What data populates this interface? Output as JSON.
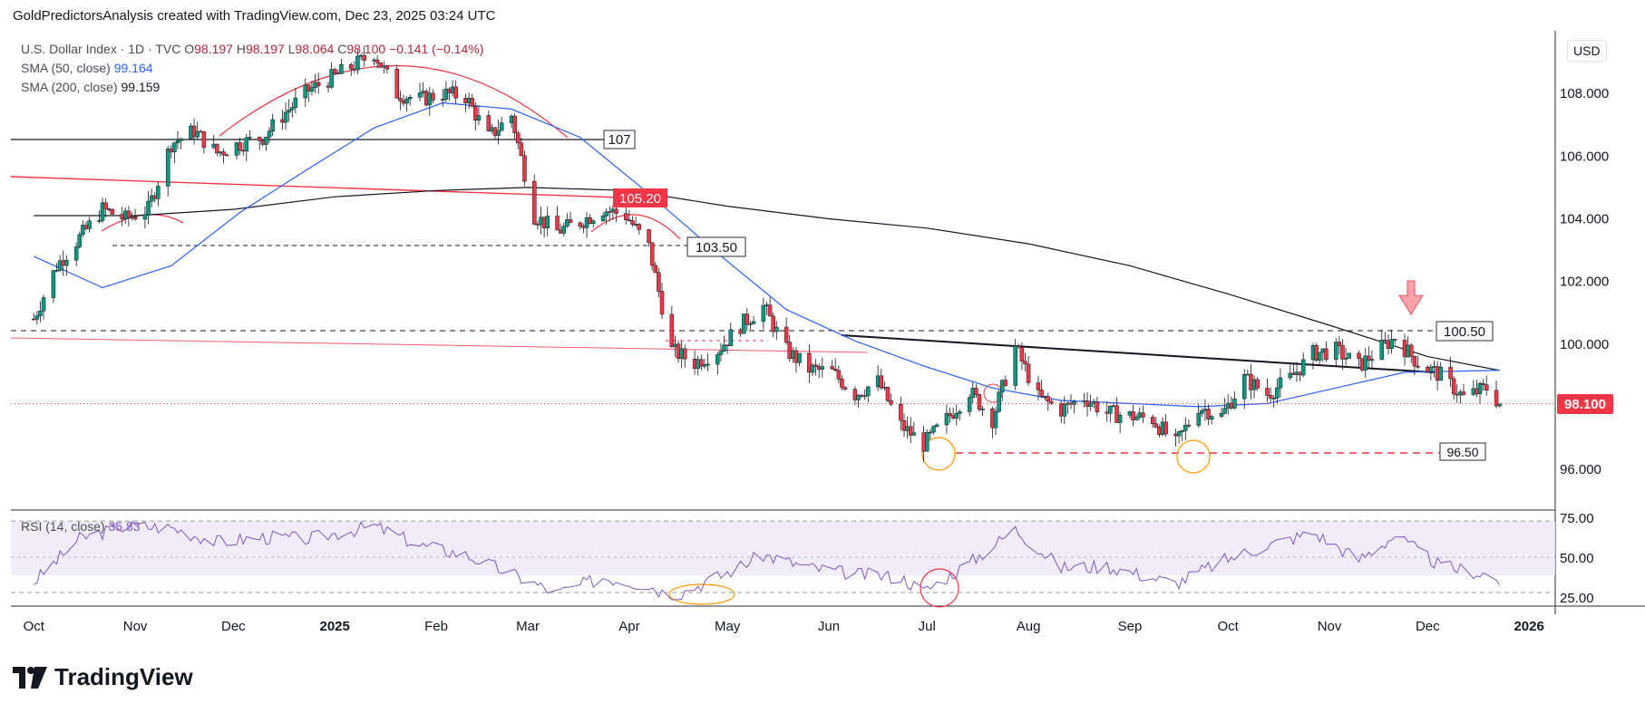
{
  "header": {
    "attribution": "GoldPredictorsAnalysis created with TradingView.com, Dec 23, 2025 03:24 UTC"
  },
  "legend": {
    "symbol": "U.S. Dollar Index · 1D · TVC",
    "ohlc": {
      "o_label": "O",
      "o": "98.197",
      "h_label": "H",
      "h": "98.197",
      "l_label": "L",
      "l": "98.064",
      "c_label": "C",
      "c": "98.100",
      "change": "−0.141 (−0.14%)"
    },
    "sma50": {
      "label": "SMA (50, close)",
      "value": "99.164"
    },
    "sma200": {
      "label": "SMA (200, close)",
      "value": "99.159"
    }
  },
  "rsi_legend": {
    "label": "RSI (14, close)",
    "value": "35.83"
  },
  "currency": "USD",
  "annotations": {
    "level_107": "107",
    "level_10520": "105.20",
    "level_10350": "103.50",
    "level_10050": "100.50",
    "level_9650": "96.50",
    "last_price": "98.100"
  },
  "brand": {
    "name": "TradingView"
  },
  "colors": {
    "up": "#089981",
    "down": "#f23645",
    "sma50": "#2962ff",
    "sma200": "#131722",
    "rsi": "#7e57c2",
    "rsi_band": "#ede7f6",
    "annotation_red": "#f23645",
    "annotation_orange": "#ff9800"
  },
  "chart_data": {
    "type": "candlestick",
    "title": "U.S. Dollar Index · 1D · TVC",
    "y_ticks": [
      "108.000",
      "106.000",
      "104.000",
      "102.000",
      "100.000",
      "98.100",
      "96.000"
    ],
    "x_ticks": [
      "Oct",
      "Nov",
      "Dec",
      "2025",
      "Feb",
      "Mar",
      "Apr",
      "May",
      "Jun",
      "Jul",
      "Aug",
      "Sep",
      "Oct",
      "Nov",
      "Dec",
      "2026"
    ],
    "ylim": [
      94.7,
      110.0
    ],
    "rsi_ticks": [
      "75.00",
      "50.00",
      "25.00"
    ],
    "rsi_ylim": [
      20,
      80
    ],
    "key_levels": [
      107,
      105.2,
      103.5,
      100.5,
      96.5
    ],
    "price_path": [
      [
        "2024-10-01",
        100.8
      ],
      [
        "2024-10-08",
        102.5
      ],
      [
        "2024-10-15",
        103.4
      ],
      [
        "2024-10-22",
        104.3
      ],
      [
        "2024-10-29",
        104.0
      ],
      [
        "2024-11-05",
        104.3
      ],
      [
        "2024-11-12",
        106.4
      ],
      [
        "2024-11-19",
        106.8
      ],
      [
        "2024-11-26",
        106.1
      ],
      [
        "2024-12-03",
        106.4
      ],
      [
        "2024-12-10",
        106.6
      ],
      [
        "2024-12-17",
        107.4
      ],
      [
        "2024-12-24",
        108.1
      ],
      [
        "2024-12-31",
        108.5
      ],
      [
        "2025-01-07",
        108.9
      ],
      [
        "2025-01-13",
        109.3
      ],
      [
        "2025-01-20",
        108.0
      ],
      [
        "2025-01-27",
        107.8
      ],
      [
        "2025-02-03",
        108.0
      ],
      [
        "2025-02-10",
        107.9
      ],
      [
        "2025-02-17",
        106.6
      ],
      [
        "2025-02-24",
        107.3
      ],
      [
        "2025-03-03",
        104.1
      ],
      [
        "2025-03-10",
        103.6
      ],
      [
        "2025-03-17",
        103.9
      ],
      [
        "2025-03-24",
        104.3
      ],
      [
        "2025-03-31",
        104.1
      ],
      [
        "2025-04-07",
        103.1
      ],
      [
        "2025-04-14",
        99.8
      ],
      [
        "2025-04-21",
        99.4
      ],
      [
        "2025-04-28",
        99.8
      ],
      [
        "2025-05-05",
        100.6
      ],
      [
        "2025-05-12",
        101.2
      ],
      [
        "2025-05-19",
        99.8
      ],
      [
        "2025-05-26",
        99.2
      ],
      [
        "2025-06-02",
        99.1
      ],
      [
        "2025-06-09",
        98.4
      ],
      [
        "2025-06-16",
        98.8
      ],
      [
        "2025-06-23",
        97.4
      ],
      [
        "2025-06-30",
        96.8
      ],
      [
        "2025-07-07",
        97.6
      ],
      [
        "2025-07-14",
        98.5
      ],
      [
        "2025-07-21",
        97.6
      ],
      [
        "2025-07-28",
        99.9
      ],
      [
        "2025-08-04",
        98.3
      ],
      [
        "2025-08-11",
        97.9
      ],
      [
        "2025-08-18",
        98.3
      ],
      [
        "2025-08-25",
        97.8
      ],
      [
        "2025-09-01",
        97.7
      ],
      [
        "2025-09-08",
        97.6
      ],
      [
        "2025-09-15",
        96.8
      ],
      [
        "2025-09-22",
        98.0
      ],
      [
        "2025-09-29",
        97.7
      ],
      [
        "2025-10-06",
        98.9
      ],
      [
        "2025-10-13",
        98.4
      ],
      [
        "2025-10-20",
        98.9
      ],
      [
        "2025-10-27",
        99.7
      ],
      [
        "2025-11-03",
        99.8
      ],
      [
        "2025-11-10",
        99.3
      ],
      [
        "2025-11-17",
        99.9
      ],
      [
        "2025-11-21",
        100.2
      ],
      [
        "2025-11-28",
        99.4
      ],
      [
        "2025-12-05",
        99.0
      ],
      [
        "2025-12-12",
        98.3
      ],
      [
        "2025-12-19",
        98.6
      ],
      [
        "2025-12-23",
        98.1
      ]
    ],
    "sma50_path": [
      [
        "2024-10-01",
        102.8
      ],
      [
        "2024-10-22",
        101.8
      ],
      [
        "2024-11-12",
        102.5
      ],
      [
        "2024-12-03",
        104.2
      ],
      [
        "2024-12-24",
        105.6
      ],
      [
        "2025-01-13",
        106.9
      ],
      [
        "2025-02-03",
        107.7
      ],
      [
        "2025-02-24",
        107.5
      ],
      [
        "2025-03-17",
        106.6
      ],
      [
        "2025-04-07",
        104.8
      ],
      [
        "2025-04-28",
        102.9
      ],
      [
        "2025-05-19",
        101.1
      ],
      [
        "2025-06-09",
        100.1
      ],
      [
        "2025-06-30",
        99.3
      ],
      [
        "2025-07-21",
        98.6
      ],
      [
        "2025-08-11",
        98.2
      ],
      [
        "2025-09-01",
        98.1
      ],
      [
        "2025-09-22",
        98.0
      ],
      [
        "2025-10-13",
        98.1
      ],
      [
        "2025-11-03",
        98.6
      ],
      [
        "2025-11-24",
        99.1
      ],
      [
        "2025-12-23",
        99.164
      ]
    ],
    "sma200_path": [
      [
        "2024-10-01",
        104.1
      ],
      [
        "2024-11-01",
        104.1
      ],
      [
        "2024-12-01",
        104.3
      ],
      [
        "2025-01-01",
        104.7
      ],
      [
        "2025-02-01",
        104.9
      ],
      [
        "2025-03-01",
        105.0
      ],
      [
        "2025-04-01",
        104.9
      ],
      [
        "2025-05-01",
        104.4
      ],
      [
        "2025-06-01",
        104.0
      ],
      [
        "2025-07-01",
        103.7
      ],
      [
        "2025-08-01",
        103.2
      ],
      [
        "2025-09-01",
        102.5
      ],
      [
        "2025-10-01",
        101.6
      ],
      [
        "2025-11-01",
        100.6
      ],
      [
        "2025-12-01",
        99.6
      ],
      [
        "2025-12-23",
        99.159
      ]
    ],
    "rsi_path": [
      [
        "2024-10-01",
        35
      ],
      [
        "2024-10-15",
        62
      ],
      [
        "2024-10-29",
        70
      ],
      [
        "2024-11-12",
        69
      ],
      [
        "2024-11-26",
        60
      ],
      [
        "2024-12-10",
        63
      ],
      [
        "2024-12-24",
        62
      ],
      [
        "2025-01-13",
        70
      ],
      [
        "2025-01-27",
        58
      ],
      [
        "2025-02-10",
        52
      ],
      [
        "2025-02-24",
        40
      ],
      [
        "2025-03-10",
        28
      ],
      [
        "2025-03-24",
        38
      ],
      [
        "2025-04-07",
        33
      ],
      [
        "2025-04-14",
        26
      ],
      [
        "2025-04-28",
        38
      ],
      [
        "2025-05-12",
        52
      ],
      [
        "2025-05-26",
        44
      ],
      [
        "2025-06-09",
        40
      ],
      [
        "2025-06-23",
        38
      ],
      [
        "2025-06-30",
        29
      ],
      [
        "2025-07-14",
        47
      ],
      [
        "2025-07-28",
        68
      ],
      [
        "2025-08-11",
        44
      ],
      [
        "2025-08-25",
        45
      ],
      [
        "2025-09-15",
        34
      ],
      [
        "2025-09-29",
        48
      ],
      [
        "2025-10-13",
        58
      ],
      [
        "2025-10-27",
        66
      ],
      [
        "2025-11-10",
        49
      ],
      [
        "2025-11-21",
        64
      ],
      [
        "2025-12-05",
        45
      ],
      [
        "2025-12-19",
        40
      ],
      [
        "2025-12-23",
        35.83
      ]
    ]
  }
}
